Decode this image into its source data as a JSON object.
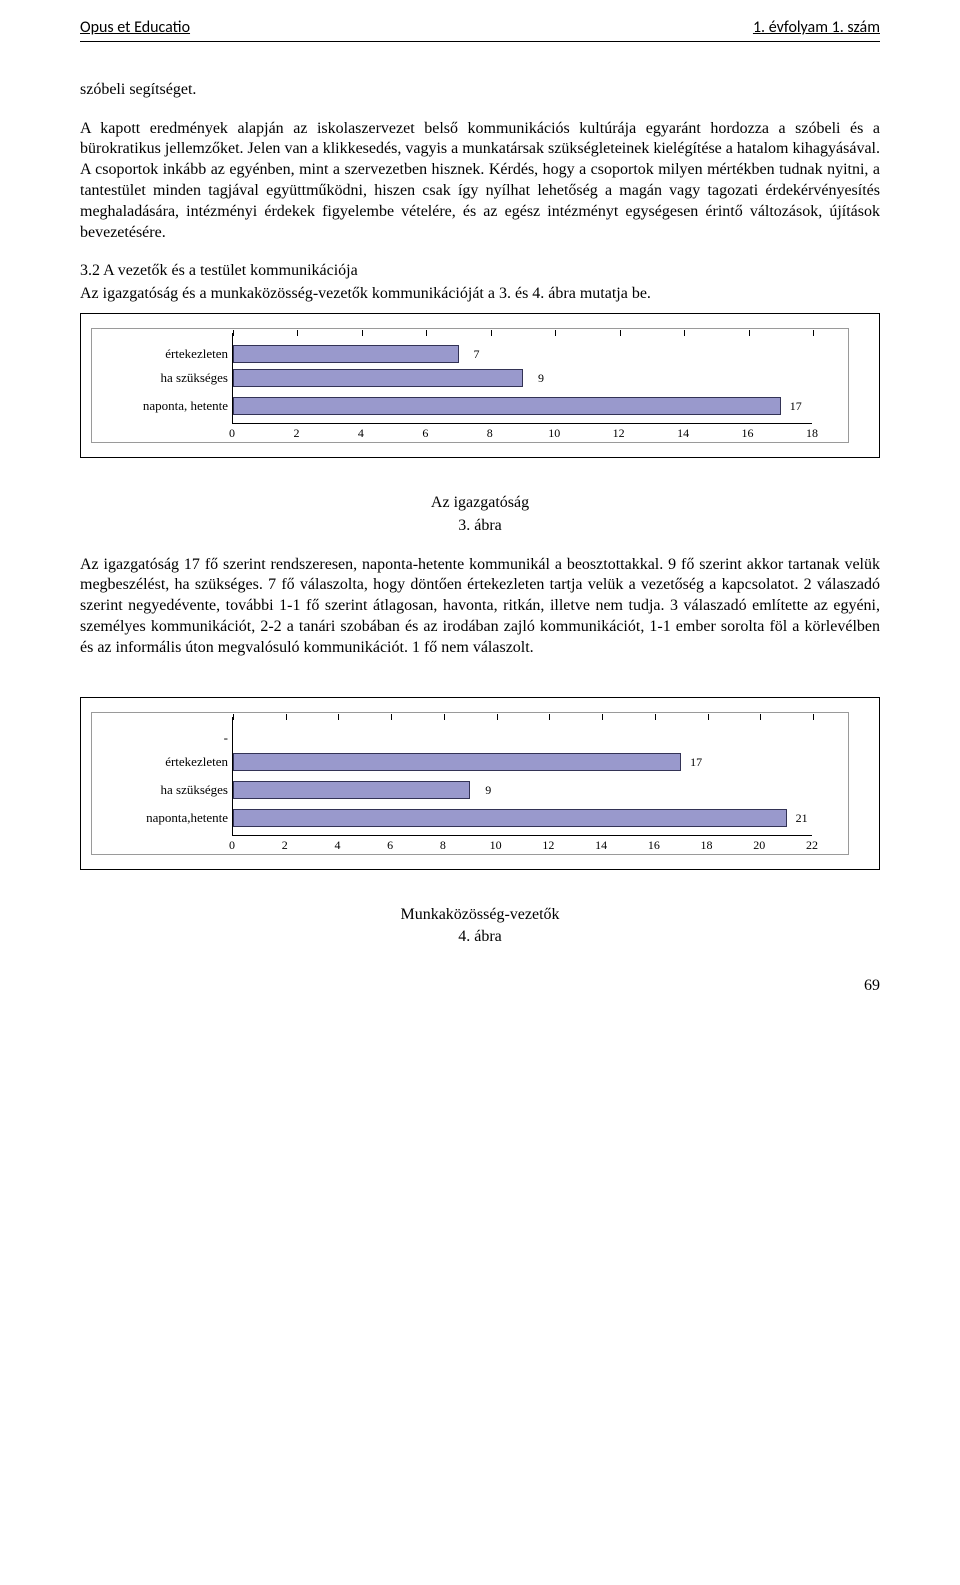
{
  "header": {
    "left": "Opus et Educatio",
    "right": "1. évfolyam 1. szám"
  },
  "body": {
    "lead": "szóbeli segítséget.",
    "para1": "A kapott eredmények alapján az iskolaszervezet belső kommunikációs kultúrája egyaránt hordozza a szóbeli és a bürokratikus jellemzőket. Jelen van a klikkesedés, vagyis a munkatársak szükségleteinek kielégítése a hatalom kihagyásával. A csoportok inkább az egyénben, mint a szervezetben hisznek. Kérdés, hogy a csoportok milyen mértékben tudnak nyitni, a tantestület minden tagjával együttműködni, hiszen csak így nyílhat lehetőség a magán vagy tagozati érdekérvényesítés meghaladására, intézményi érdekek figyelembe vételére, és az egész intézményt egységesen érintő változások, újítások bevezetésére.",
    "section_title": "3.2 A vezetők és a testület kommunikációja",
    "section_sub": "Az igazgatóság és a munkaközösség-vezetők kommunikációját a 3. és 4. ábra mutatja be."
  },
  "chart3": {
    "type": "bar",
    "categories": [
      "értekezleten",
      "ha szükséges",
      "naponta, hetente"
    ],
    "values": [
      7,
      9,
      17
    ],
    "bar_color": "#9999cc",
    "bar_border": "#333355",
    "xmax": 18,
    "xticks": [
      0,
      2,
      4,
      6,
      8,
      10,
      12,
      14,
      16,
      18
    ],
    "frame_border": "#9a9a9a",
    "background_color": "#ffffff",
    "caption": "Az igazgatóság",
    "caption_b": "3. ábra"
  },
  "para_after_chart3": "Az igazgatóság 17 fő szerint rendszeresen, naponta-hetente kommunikál a beosztottakkal. 9 fő szerint akkor tartanak velük megbeszélést, ha szükséges. 7 fő válaszolta, hogy döntően értekezleten tartja velük a vezetőség a kapcsolatot. 2 válaszadó szerint negyedévente, további 1-1 fő szerint átlagosan, havonta, ritkán, illetve nem tudja. 3 válaszadó említette az egyéni, személyes kommunikációt, 2-2 a tanári szobában és az irodában zajló kommunikációt, 1-1 ember sorolta föl a körlevélben és az informális úton megvalósuló kommunikációt. 1 fő nem válaszolt.",
  "chart4": {
    "type": "bar",
    "categories": [
      "-",
      "értekezleten",
      "ha szükséges",
      "naponta,hetente"
    ],
    "values": [
      0,
      17,
      9,
      21
    ],
    "bar_color": "#9999cc",
    "bar_border": "#333355",
    "xmax": 22,
    "xticks": [
      0,
      2,
      4,
      6,
      8,
      10,
      12,
      14,
      16,
      18,
      20,
      22
    ],
    "frame_border": "#9a9a9a",
    "background_color": "#ffffff",
    "caption": "Munkaközösség-vezetők",
    "caption_b": "4. ábra"
  },
  "page_number": "69"
}
